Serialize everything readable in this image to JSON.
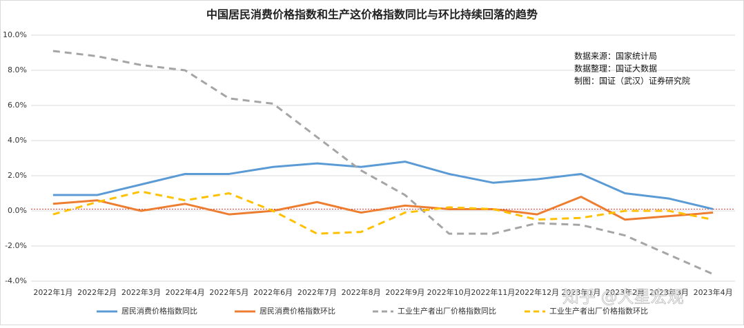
{
  "chart_data": {
    "type": "line",
    "title": "中国居民消费价格指数和生产这价格指数同比与环比持续回落的趋势",
    "annotations": [
      "数据来源：国家统计局",
      "数据整理：国证大数据",
      "制图：国证（武汉）证券研究院"
    ],
    "watermark": "知乎 @大星宏观",
    "categories": [
      "2022年1月",
      "2022年2月",
      "2022年3月",
      "2022年4月",
      "2022年5月",
      "2022年6月",
      "2022年7月",
      "2022年8月",
      "2022年9月",
      "2022年10月",
      "2022年11月",
      "2022年12月",
      "2023年1月",
      "2023年2月",
      "2023年3月",
      "2023年4月"
    ],
    "series": [
      {
        "name": "居民消费价格指数同比",
        "color": "#5b9bd5",
        "style": "solid",
        "values": [
          0.9,
          0.9,
          1.5,
          2.1,
          2.1,
          2.5,
          2.7,
          2.5,
          2.8,
          2.1,
          1.6,
          1.8,
          2.1,
          1.0,
          0.7,
          0.1
        ]
      },
      {
        "name": "居民消费价格指数环比",
        "color": "#ed7d31",
        "style": "solid",
        "values": [
          0.4,
          0.6,
          0.0,
          0.4,
          -0.2,
          0.0,
          0.5,
          -0.1,
          0.3,
          0.1,
          0.1,
          -0.2,
          0.8,
          -0.5,
          -0.3,
          -0.1
        ]
      },
      {
        "name": "工业生产者出厂价格指数同比",
        "color": "#a5a5a5",
        "style": "dashed",
        "values": [
          9.1,
          8.8,
          8.3,
          8.0,
          6.4,
          6.1,
          4.2,
          2.3,
          0.9,
          -1.3,
          -1.3,
          -0.7,
          -0.8,
          -1.4,
          -2.5,
          -3.6
        ]
      },
      {
        "name": "工业生产者出厂价格指数环比",
        "color": "#ffc000",
        "style": "dashed",
        "values": [
          -0.2,
          0.5,
          1.1,
          0.6,
          1.0,
          0.0,
          -1.3,
          -1.2,
          -0.1,
          0.2,
          0.1,
          -0.5,
          -0.4,
          0.0,
          0.0,
          -0.5
        ]
      }
    ],
    "reference_line": {
      "value": 0.1,
      "color": "#e03030"
    },
    "ylim": [
      -4,
      10
    ],
    "yticks": [
      {
        "value": -4,
        "label": "-4.0%"
      },
      {
        "value": -2,
        "label": "-2.0%"
      },
      {
        "value": 0,
        "label": "0.0%"
      },
      {
        "value": 2,
        "label": "2.0%"
      },
      {
        "value": 4,
        "label": "4.0%"
      },
      {
        "value": 6,
        "label": "6.0%"
      },
      {
        "value": 8,
        "label": "8.0%"
      },
      {
        "value": 10,
        "label": "10.0%"
      }
    ],
    "grid": true,
    "legend": "bottom"
  }
}
